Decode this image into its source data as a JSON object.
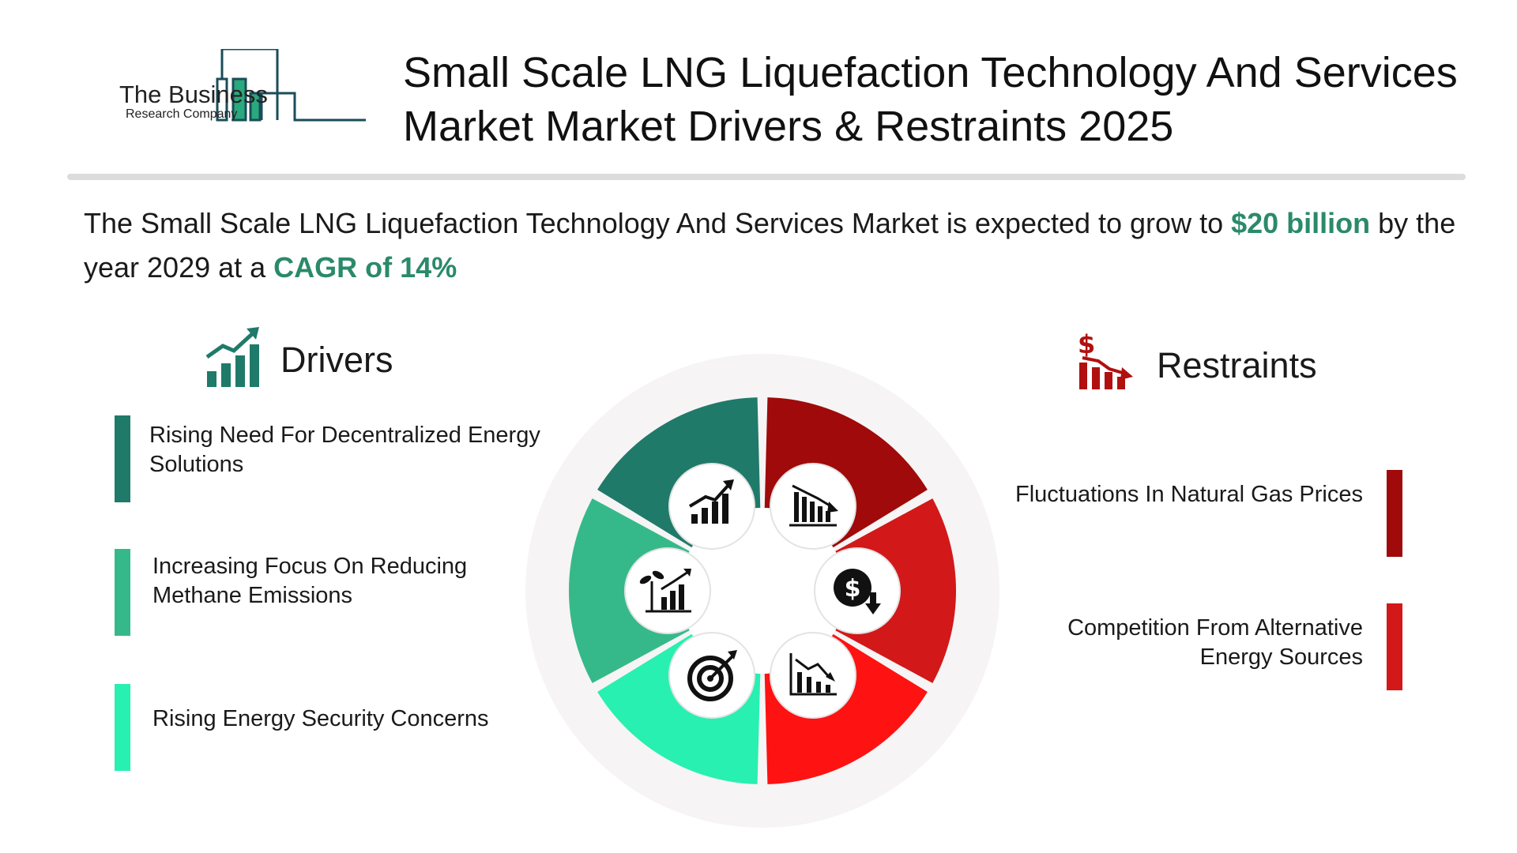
{
  "logo": {
    "line1": "The Business",
    "line2": "Research Company"
  },
  "title": {
    "line1": "Small Scale LNG Liquefaction Technology And Services",
    "line2": "Market Market Drivers & Restraints 2025"
  },
  "summary": {
    "prefix": "The Small Scale LNG Liquefaction Technology And Services Market is expected to grow to ",
    "value": "$20 billion",
    "middle": " by the year 2029 at a ",
    "cagr": "CAGR of  14%"
  },
  "drivers": {
    "heading": "Drivers",
    "icon": "growth-chart-icon",
    "items": [
      {
        "label": "Rising Need For Decentralized Energy Solutions",
        "color": "#1f7a6a"
      },
      {
        "label": "Increasing Focus On Reducing Methane Emissions",
        "color": "#36b98a"
      },
      {
        "label": "Rising Energy Security Concerns",
        "color": "#27f0b0"
      }
    ]
  },
  "restraints": {
    "heading": "Restraints",
    "icon": "dollar-decline-chart-icon",
    "items": [
      {
        "label": "Fluctuations In Natural Gas Prices",
        "color": "#a00a0a"
      },
      {
        "label": "Competition From Alternative Energy Sources",
        "color": "#d21818"
      }
    ]
  },
  "wheel": {
    "segments": [
      {
        "color": "#1f7a6a",
        "icon": "growth-chart-icon"
      },
      {
        "color": "#a00a0a",
        "icon": "declining-bar-chart-icon"
      },
      {
        "color": "#d21818",
        "icon": "dollar-down-icon"
      },
      {
        "color": "#ff1212",
        "icon": "declining-trend-chart-icon"
      },
      {
        "color": "#27f0b0",
        "icon": "target-icon"
      },
      {
        "color": "#36b98a",
        "icon": "plant-growth-chart-icon"
      }
    ]
  }
}
